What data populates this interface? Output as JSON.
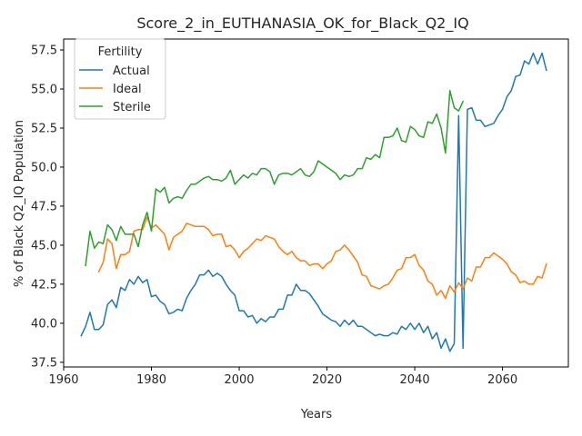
{
  "chart_data": {
    "type": "line",
    "title": "Score_2_in_EUTHANASIA_OK_for_Black_Q2_IQ",
    "xlabel": "Years",
    "ylabel": "% of Black Q2_IQ Population",
    "xlim": [
      1960,
      2075
    ],
    "ylim": [
      37.2,
      58.2
    ],
    "xticks": [
      1960,
      1980,
      2000,
      2020,
      2040,
      2060
    ],
    "xtick_labels": [
      "1960",
      "1980",
      "2000",
      "2020",
      "2040",
      "2060"
    ],
    "yticks": [
      37.5,
      40.0,
      42.5,
      45.0,
      47.5,
      50.0,
      52.5,
      55.0,
      57.5
    ],
    "ytick_labels": [
      "37.5",
      "40.0",
      "42.5",
      "45.0",
      "47.5",
      "50.0",
      "52.5",
      "55.0",
      "57.5"
    ],
    "grid": false,
    "legend": {
      "title": "Fertility",
      "location": "upper-left"
    },
    "series": [
      {
        "name": "Actual",
        "color": "#1f77b4",
        "points": [
          [
            1964,
            39.2
          ],
          [
            1965,
            39.8
          ],
          [
            1966,
            40.7
          ],
          [
            1967,
            39.6
          ],
          [
            1968,
            39.6
          ],
          [
            1969,
            39.9
          ],
          [
            1970,
            41.2
          ],
          [
            1971,
            41.5
          ],
          [
            1972,
            41.0
          ],
          [
            1973,
            42.3
          ],
          [
            1974,
            42.1
          ],
          [
            1975,
            42.8
          ],
          [
            1976,
            42.5
          ],
          [
            1977,
            43.0
          ],
          [
            1978,
            42.6
          ],
          [
            1979,
            42.8
          ],
          [
            1980,
            41.7
          ],
          [
            1981,
            41.8
          ],
          [
            1982,
            41.4
          ],
          [
            1983,
            41.2
          ],
          [
            1984,
            40.6
          ],
          [
            1985,
            40.7
          ],
          [
            1986,
            40.9
          ],
          [
            1987,
            40.8
          ],
          [
            1988,
            41.6
          ],
          [
            1989,
            42.1
          ],
          [
            1990,
            42.5
          ],
          [
            1991,
            43.1
          ],
          [
            1992,
            43.1
          ],
          [
            1993,
            43.4
          ],
          [
            1994,
            43.0
          ],
          [
            1995,
            43.2
          ],
          [
            1996,
            43.0
          ],
          [
            1997,
            42.5
          ],
          [
            1998,
            42.1
          ],
          [
            1999,
            41.8
          ],
          [
            2000,
            40.8
          ],
          [
            2001,
            40.8
          ],
          [
            2002,
            40.4
          ],
          [
            2003,
            40.5
          ],
          [
            2004,
            40.0
          ],
          [
            2005,
            40.3
          ],
          [
            2006,
            40.1
          ],
          [
            2007,
            40.4
          ],
          [
            2008,
            40.4
          ],
          [
            2009,
            40.9
          ],
          [
            2010,
            40.9
          ],
          [
            2011,
            41.8
          ],
          [
            2012,
            41.8
          ],
          [
            2013,
            42.5
          ],
          [
            2014,
            42.1
          ],
          [
            2015,
            42.1
          ],
          [
            2016,
            41.9
          ],
          [
            2017,
            41.5
          ],
          [
            2018,
            41.1
          ],
          [
            2019,
            40.6
          ],
          [
            2020,
            40.4
          ],
          [
            2021,
            40.2
          ],
          [
            2022,
            40.1
          ],
          [
            2023,
            39.8
          ],
          [
            2024,
            40.2
          ],
          [
            2025,
            39.9
          ],
          [
            2026,
            40.2
          ],
          [
            2027,
            39.8
          ],
          [
            2028,
            39.8
          ],
          [
            2029,
            39.6
          ],
          [
            2030,
            39.4
          ],
          [
            2031,
            39.2
          ],
          [
            2032,
            39.3
          ],
          [
            2033,
            39.2
          ],
          [
            2034,
            39.2
          ],
          [
            2035,
            39.4
          ],
          [
            2036,
            39.3
          ],
          [
            2037,
            39.8
          ],
          [
            2038,
            39.6
          ],
          [
            2039,
            40.0
          ],
          [
            2040,
            39.6
          ],
          [
            2041,
            40.0
          ],
          [
            2042,
            39.4
          ],
          [
            2043,
            39.8
          ],
          [
            2044,
            39.0
          ],
          [
            2045,
            39.4
          ],
          [
            2046,
            38.4
          ],
          [
            2047,
            39.0
          ],
          [
            2048,
            38.2
          ],
          [
            2049,
            38.7
          ],
          [
            2050,
            53.3
          ],
          [
            2051,
            38.4
          ],
          [
            2052,
            53.7
          ],
          [
            2053,
            53.8
          ],
          [
            2054,
            53.0
          ],
          [
            2055,
            53.0
          ],
          [
            2056,
            52.6
          ],
          [
            2057,
            52.7
          ],
          [
            2058,
            52.8
          ],
          [
            2059,
            53.3
          ],
          [
            2060,
            53.7
          ],
          [
            2061,
            54.5
          ],
          [
            2062,
            54.9
          ],
          [
            2063,
            55.8
          ],
          [
            2064,
            55.9
          ],
          [
            2065,
            56.8
          ],
          [
            2066,
            56.6
          ],
          [
            2067,
            57.3
          ],
          [
            2068,
            56.6
          ],
          [
            2069,
            57.3
          ],
          [
            2070,
            56.2
          ]
        ]
      },
      {
        "name": "Ideal",
        "color": "#ff7f0e",
        "points": [
          [
            1968,
            43.3
          ],
          [
            1969,
            43.9
          ],
          [
            1970,
            45.4
          ],
          [
            1971,
            45.1
          ],
          [
            1972,
            43.5
          ],
          [
            1973,
            44.4
          ],
          [
            1974,
            44.4
          ],
          [
            1975,
            44.6
          ],
          [
            1976,
            45.9
          ],
          [
            1977,
            46.0
          ],
          [
            1978,
            46.0
          ],
          [
            1979,
            46.8
          ],
          [
            1980,
            46.1
          ],
          [
            1981,
            46.3
          ],
          [
            1982,
            46.0
          ],
          [
            1983,
            45.7
          ],
          [
            1984,
            44.7
          ],
          [
            1985,
            45.5
          ],
          [
            1986,
            45.7
          ],
          [
            1987,
            45.9
          ],
          [
            1988,
            46.4
          ],
          [
            1989,
            46.3
          ],
          [
            1990,
            46.2
          ],
          [
            1991,
            46.2
          ],
          [
            1992,
            46.2
          ],
          [
            1993,
            46.0
          ],
          [
            1994,
            45.6
          ],
          [
            1995,
            45.7
          ],
          [
            1996,
            45.7
          ],
          [
            1997,
            44.9
          ],
          [
            1998,
            45.0
          ],
          [
            1999,
            44.7
          ],
          [
            2000,
            44.2
          ],
          [
            2001,
            44.6
          ],
          [
            2002,
            44.8
          ],
          [
            2003,
            45.1
          ],
          [
            2004,
            45.4
          ],
          [
            2005,
            45.3
          ],
          [
            2006,
            45.6
          ],
          [
            2007,
            45.5
          ],
          [
            2008,
            45.4
          ],
          [
            2009,
            44.9
          ],
          [
            2010,
            44.6
          ],
          [
            2011,
            44.4
          ],
          [
            2012,
            44.6
          ],
          [
            2013,
            44.2
          ],
          [
            2014,
            44.0
          ],
          [
            2015,
            44.0
          ],
          [
            2016,
            43.7
          ],
          [
            2017,
            43.8
          ],
          [
            2018,
            43.8
          ],
          [
            2019,
            43.5
          ],
          [
            2020,
            43.8
          ],
          [
            2021,
            44.0
          ],
          [
            2022,
            44.6
          ],
          [
            2023,
            44.7
          ],
          [
            2024,
            45.0
          ],
          [
            2025,
            44.7
          ],
          [
            2026,
            44.3
          ],
          [
            2027,
            43.9
          ],
          [
            2028,
            43.1
          ],
          [
            2029,
            43.0
          ],
          [
            2030,
            42.4
          ],
          [
            2031,
            42.3
          ],
          [
            2032,
            42.2
          ],
          [
            2033,
            42.4
          ],
          [
            2034,
            42.5
          ],
          [
            2035,
            42.9
          ],
          [
            2036,
            43.4
          ],
          [
            2037,
            43.5
          ],
          [
            2038,
            44.2
          ],
          [
            2039,
            44.2
          ],
          [
            2040,
            44.4
          ],
          [
            2041,
            43.7
          ],
          [
            2042,
            43.4
          ],
          [
            2043,
            42.7
          ],
          [
            2044,
            42.5
          ],
          [
            2045,
            41.8
          ],
          [
            2046,
            42.1
          ],
          [
            2047,
            41.6
          ],
          [
            2048,
            42.4
          ],
          [
            2049,
            42.0
          ],
          [
            2050,
            42.6
          ],
          [
            2051,
            42.2
          ],
          [
            2052,
            42.9
          ],
          [
            2053,
            42.7
          ],
          [
            2054,
            43.6
          ],
          [
            2055,
            43.6
          ],
          [
            2056,
            44.2
          ],
          [
            2057,
            44.2
          ],
          [
            2058,
            44.5
          ],
          [
            2059,
            44.3
          ],
          [
            2060,
            44.1
          ],
          [
            2061,
            43.8
          ],
          [
            2062,
            43.3
          ],
          [
            2063,
            43.1
          ],
          [
            2064,
            42.6
          ],
          [
            2065,
            42.7
          ],
          [
            2066,
            42.5
          ],
          [
            2067,
            42.5
          ],
          [
            2068,
            43.0
          ],
          [
            2069,
            42.9
          ],
          [
            2070,
            43.8
          ]
        ]
      },
      {
        "name": "Sterile",
        "color": "#2ca02c",
        "points": [
          [
            1965,
            43.7
          ],
          [
            1966,
            45.9
          ],
          [
            1967,
            44.8
          ],
          [
            1968,
            45.2
          ],
          [
            1969,
            45.1
          ],
          [
            1970,
            46.3
          ],
          [
            1971,
            46.0
          ],
          [
            1972,
            45.3
          ],
          [
            1973,
            46.2
          ],
          [
            1974,
            45.7
          ],
          [
            1975,
            45.7
          ],
          [
            1976,
            45.7
          ],
          [
            1977,
            44.9
          ],
          [
            1978,
            46.3
          ],
          [
            1979,
            47.1
          ],
          [
            1980,
            45.9
          ],
          [
            1981,
            48.6
          ],
          [
            1982,
            48.4
          ],
          [
            1983,
            48.7
          ],
          [
            1984,
            47.7
          ],
          [
            1985,
            48.0
          ],
          [
            1986,
            48.1
          ],
          [
            1987,
            48.0
          ],
          [
            1988,
            48.5
          ],
          [
            1989,
            48.9
          ],
          [
            1990,
            48.9
          ],
          [
            1991,
            49.1
          ],
          [
            1992,
            49.3
          ],
          [
            1993,
            49.4
          ],
          [
            1994,
            49.2
          ],
          [
            1995,
            49.2
          ],
          [
            1996,
            49.1
          ],
          [
            1997,
            49.3
          ],
          [
            1998,
            49.8
          ],
          [
            1999,
            48.9
          ],
          [
            2000,
            49.2
          ],
          [
            2001,
            49.5
          ],
          [
            2002,
            49.3
          ],
          [
            2003,
            49.6
          ],
          [
            2004,
            49.5
          ],
          [
            2005,
            49.9
          ],
          [
            2006,
            49.9
          ],
          [
            2007,
            49.7
          ],
          [
            2008,
            48.9
          ],
          [
            2009,
            49.5
          ],
          [
            2010,
            49.6
          ],
          [
            2011,
            49.6
          ],
          [
            2012,
            49.5
          ],
          [
            2013,
            49.7
          ],
          [
            2014,
            49.9
          ],
          [
            2015,
            49.5
          ],
          [
            2016,
            49.4
          ],
          [
            2017,
            49.7
          ],
          [
            2018,
            50.4
          ],
          [
            2019,
            50.2
          ],
          [
            2020,
            50.0
          ],
          [
            2021,
            49.8
          ],
          [
            2022,
            49.6
          ],
          [
            2023,
            49.2
          ],
          [
            2024,
            49.5
          ],
          [
            2025,
            49.4
          ],
          [
            2026,
            49.5
          ],
          [
            2027,
            49.9
          ],
          [
            2028,
            49.9
          ],
          [
            2029,
            50.6
          ],
          [
            2030,
            50.5
          ],
          [
            2031,
            50.8
          ],
          [
            2032,
            50.6
          ],
          [
            2033,
            51.9
          ],
          [
            2034,
            51.9
          ],
          [
            2035,
            52.0
          ],
          [
            2036,
            52.5
          ],
          [
            2037,
            51.7
          ],
          [
            2038,
            51.6
          ],
          [
            2039,
            52.6
          ],
          [
            2040,
            52.4
          ],
          [
            2041,
            52.0
          ],
          [
            2042,
            51.9
          ],
          [
            2043,
            52.9
          ],
          [
            2044,
            52.8
          ],
          [
            2045,
            53.4
          ],
          [
            2046,
            52.5
          ],
          [
            2047,
            50.9
          ],
          [
            2048,
            54.9
          ],
          [
            2049,
            53.8
          ],
          [
            2050,
            53.6
          ],
          [
            2051,
            54.2
          ]
        ]
      }
    ]
  }
}
